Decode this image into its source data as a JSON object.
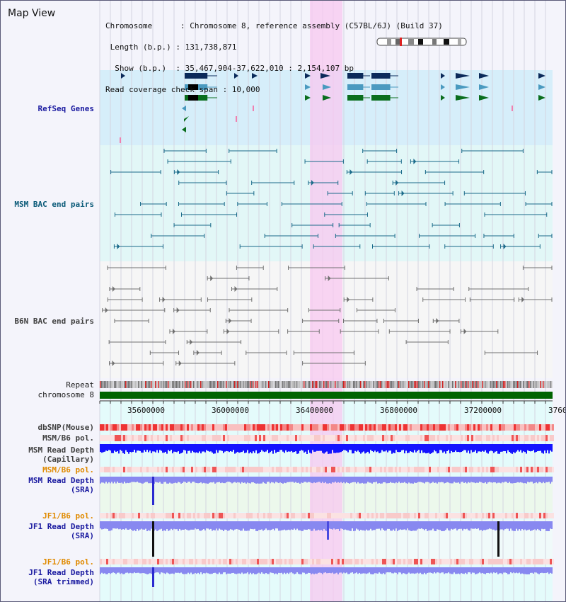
{
  "view": {
    "title": "Map View"
  },
  "info": {
    "chromosome_line": "Chromosome      : Chromosome 8, reference assembly (C57BL/6J) (Build 37)",
    "length_line": " Length (b.p.) : 131,738,871",
    "show_line": "  Show (b.p.)  : 35,467,904-37,622,010 : 2,154,107 bp",
    "coverage_line": "Read coverage check span : 10,000"
  },
  "tracks": {
    "refseq": "RefSeq Genes",
    "msm_bac": "MSM BAC end pairs",
    "b6n_bac": "B6N BAC end pairs",
    "repeat": "Repeat",
    "chromosome": "chromosome 8",
    "dbsnp": "dbSNP(Mouse)",
    "msm_b6_pol_1": "MSM/B6 pol.",
    "msm_depth_cap_1": "MSM Read Depth",
    "msm_depth_cap_2": "(Capillary)",
    "msm_b6_pol_2": "MSM/B6 pol.",
    "msm_depth_sra_1": "MSM Read Depth",
    "msm_depth_sra_2": "(SRA)",
    "jf1_b6_pol_1": "JF1/B6 pol.",
    "jf1_depth_sra_1": "JF1 Read Depth",
    "jf1_depth_sra_2": "(SRA)",
    "jf1_b6_pol_2": "JF1/B6 pol.",
    "jf1_depth_trim_1": "JF1 Read Depth",
    "jf1_depth_trim_2": "(SRA trimmed)"
  },
  "axis": {
    "ticks": [
      "35600000",
      "36000000",
      "36400000",
      "36800000",
      "37200000",
      "3760"
    ]
  },
  "colors": {
    "highlight": "#f8c8f0",
    "refseq_bg": "#d6eefa",
    "msm_bg": "#e2f7f7",
    "gene_dark": "#0b2a5a",
    "gene_mid": "#4a9ac0",
    "gene_green": "#0a6e1e",
    "msm_bac": "#1a6a8a",
    "b6n_bac": "#707070",
    "chromosome": "#006400",
    "depth_blue": "#1414ff",
    "depth_light": "#8888f0",
    "snp_red": "#ee4444"
  }
}
